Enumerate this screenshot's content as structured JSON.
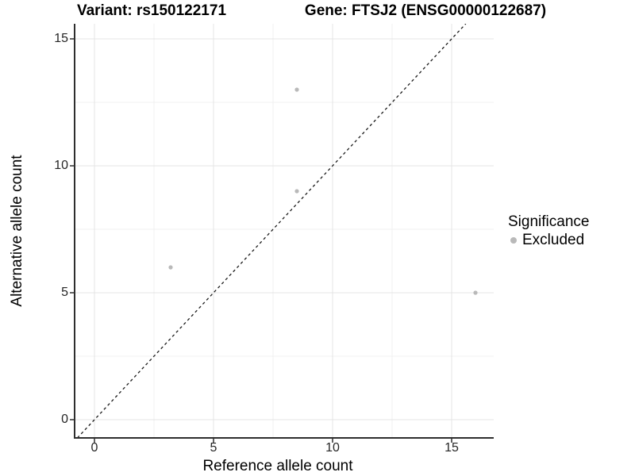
{
  "figure": {
    "title_left": "Variant: rs150122171",
    "title_right": "Gene: FTSJ2 (ENSG00000122687)"
  },
  "chart_data": {
    "type": "scatter",
    "title_left": "Variant: rs150122171",
    "title_right": "Gene: FTSJ2 (ENSG00000122687)",
    "xlabel": "Reference allele count",
    "ylabel": "Alternative allele count",
    "x_ticks": [
      0,
      5,
      10,
      15
    ],
    "y_ticks": [
      0,
      5,
      10,
      15
    ],
    "x_minor_gridlines": [
      2.5,
      7.5,
      12.5
    ],
    "y_minor_gridlines": [
      2.5,
      7.5,
      12.5
    ],
    "xlim": [
      -0.83,
      16.77
    ],
    "ylim": [
      -0.72,
      15.59
    ],
    "grid": "major and minor, light gray on white",
    "legend_position": "right",
    "series": [
      {
        "name": "Excluded",
        "color": "#b9b9b9",
        "points": [
          [
            8.5,
            13
          ],
          [
            8.5,
            9
          ],
          [
            3.2,
            6
          ],
          [
            16,
            5
          ]
        ]
      }
    ],
    "reference_line": {
      "slope": 1,
      "intercept": 0,
      "style": "dashed",
      "color": "#1a1a1a"
    }
  },
  "legend": {
    "title": "Significance",
    "items": [
      {
        "label": "Excluded",
        "color": "#b9b9b9"
      }
    ]
  },
  "colors": {
    "background": "#ffffff",
    "point": "#b9b9b9",
    "grid_major": "#e4e4e4",
    "grid_minor": "#f1f1f1",
    "axis_line": "#2e2e2e",
    "tick_text": "#262626",
    "title_text": "#000000"
  }
}
